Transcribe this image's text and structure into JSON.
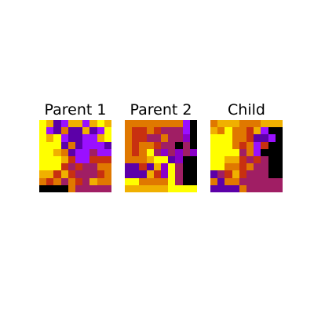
{
  "palette": {
    "Y": "#ffff00",
    "G": "#f0b000",
    "O": "#e07800",
    "R": "#c83010",
    "M": "#a01e64",
    "P": "#8a00c8",
    "V": "#5c00a8",
    "U": "#9a10ff",
    "K": "#000000"
  },
  "panels": [
    {
      "title": "Parent 1",
      "grid": [
        "YGVUGGUGYG",
        "YUVOVVGVUY",
        "YGYUVVUUGY",
        "YYYVOVUUUV",
        "YYGOVUUMUU",
        "YYYGRUURRR",
        "YYYRMRMMOO",
        "GGRGRMMMRO",
        "OROMORMGOO",
        "KKKKOMMMMM"
      ]
    },
    {
      "title": "Parent 2",
      "grid": [
        "OOOOOOOOUK",
        "ORRORMMMUK",
        "ORRMMOMMPK",
        "OROORMMKMK",
        "OROYMPMPMP",
        "OOOGYYVPKK",
        "VVRVGPYMKK",
        "VVVGRPYMKK",
        "YYOOOOYMKK",
        "GGGGGGYYYY"
      ]
    },
    {
      "title": "Child",
      "grid": [
        "OGGGOOOGGG",
        "GOYOORGUKK",
        "YYYOORVVUK",
        "YYYOROURKK",
        "YYYYMOUKKK",
        "YYGGRMRMKK",
        "YYOOROMMKK",
        "VMRGRMMMKK",
        "OVOOMMMMMM",
        "VVVVOMMMMM"
      ]
    }
  ]
}
